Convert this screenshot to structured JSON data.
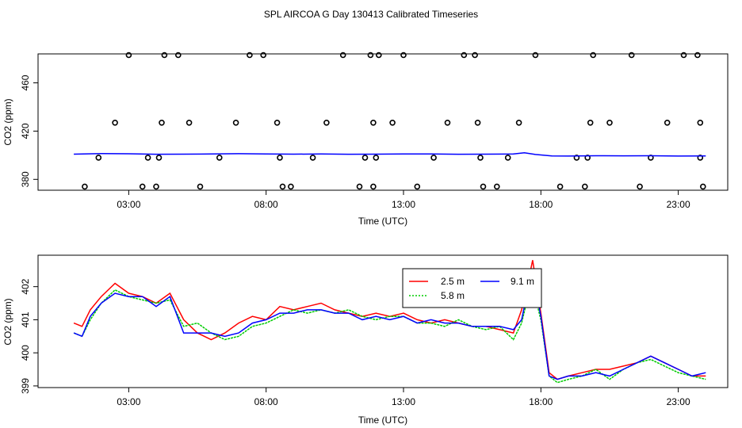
{
  "title": "SPL AIRCOA G  Day 130413  Calibrated Timeseries",
  "chart_data": [
    {
      "type": "line+scatter",
      "panel": "top",
      "xlabel": "Time (UTC)",
      "ylabel": "CO2 (ppm)",
      "xlim": [
        -0.3,
        24.8
      ],
      "ylim": [
        371.0,
        484.0
      ],
      "xticks": [
        3,
        8,
        13,
        18,
        23
      ],
      "xtick_labels": [
        "03:00",
        "08:00",
        "13:00",
        "18:00",
        "23:00"
      ],
      "yticks": [
        380,
        420,
        460
      ],
      "ytick_labels": [
        "380",
        "420",
        "460"
      ],
      "line_series": {
        "name": "CO2",
        "color": "#0000ff",
        "x": [
          1.0,
          2.0,
          3.0,
          4.0,
          5.0,
          6.0,
          7.0,
          8.0,
          9.0,
          10.0,
          11.0,
          12.0,
          13.0,
          14.0,
          15.0,
          16.0,
          17.0,
          17.4,
          17.8,
          18.4,
          19.0,
          20.0,
          21.0,
          22.0,
          23.0,
          24.0
        ],
        "y": [
          400.9,
          401.4,
          401.2,
          400.8,
          400.9,
          401.0,
          401.3,
          401.1,
          400.9,
          401.0,
          400.8,
          400.9,
          401.0,
          401.0,
          400.8,
          400.9,
          401.0,
          402.1,
          400.6,
          399.4,
          399.3,
          399.6,
          399.5,
          399.6,
          399.3,
          399.4
        ]
      },
      "markers": {
        "name": "calibration points",
        "color": "#000000",
        "x": [
          1.4,
          1.9,
          2.5,
          3.0,
          3.5,
          3.7,
          4.0,
          4.1,
          4.2,
          4.3,
          4.8,
          5.2,
          5.6,
          6.3,
          6.9,
          7.4,
          7.9,
          8.4,
          8.5,
          8.6,
          8.9,
          9.7,
          10.2,
          10.8,
          11.4,
          11.6,
          11.8,
          11.9,
          11.9,
          12.0,
          12.1,
          12.6,
          13.0,
          13.5,
          14.1,
          14.6,
          15.2,
          15.6,
          15.7,
          15.8,
          15.9,
          16.4,
          16.8,
          17.2,
          17.8,
          18.7,
          19.3,
          19.6,
          19.7,
          19.8,
          19.9,
          20.5,
          21.3,
          21.6,
          22.0,
          22.6,
          23.2,
          23.7,
          23.8,
          23.8,
          23.9
        ],
        "y": [
          374,
          398,
          427,
          483,
          374,
          398,
          374,
          398,
          427,
          483,
          483,
          427,
          374,
          398,
          427,
          483,
          483,
          427,
          398,
          374,
          374,
          398,
          427,
          483,
          374,
          398,
          483,
          427,
          374,
          398,
          483,
          427,
          483,
          374,
          398,
          427,
          483,
          483,
          427,
          398,
          374,
          374,
          398,
          427,
          483,
          374,
          398,
          374,
          398,
          427,
          483,
          427,
          483,
          374,
          398,
          427,
          483,
          483,
          427,
          398,
          374
        ]
      }
    },
    {
      "type": "line",
      "panel": "bottom",
      "xlabel": "Time (UTC)",
      "ylabel": "CO2 (ppm)",
      "xlim": [
        -0.3,
        24.8
      ],
      "ylim": [
        398.95,
        402.95
      ],
      "xticks": [
        3,
        8,
        13,
        18,
        23
      ],
      "xtick_labels": [
        "03:00",
        "08:00",
        "13:00",
        "18:00",
        "23:00"
      ],
      "yticks": [
        399,
        400,
        401,
        402
      ],
      "ytick_labels": [
        "399",
        "400",
        "401",
        "402"
      ],
      "legend": {
        "placement": "top-center"
      },
      "series": [
        {
          "name": "2.5 m",
          "color": "#ff0000",
          "x": [
            1.0,
            1.3,
            1.6,
            2.0,
            2.5,
            3.0,
            3.5,
            4.0,
            4.5,
            5.0,
            5.5,
            6.0,
            6.5,
            7.0,
            7.5,
            8.0,
            8.5,
            9.0,
            9.5,
            10.0,
            10.5,
            11.0,
            11.5,
            12.0,
            12.5,
            13.0,
            13.5,
            14.0,
            14.5,
            15.0,
            15.5,
            16.0,
            16.5,
            17.0,
            17.3,
            17.5,
            17.7,
            18.0,
            18.3,
            18.6,
            19.0,
            19.5,
            20.0,
            20.5,
            21.0,
            21.5,
            22.0,
            22.5,
            23.0,
            23.5,
            24.0
          ],
          "y": [
            400.9,
            400.8,
            401.3,
            401.7,
            402.1,
            401.8,
            401.7,
            401.5,
            401.8,
            401.0,
            400.6,
            400.4,
            400.6,
            400.9,
            401.1,
            401.0,
            401.4,
            401.3,
            401.4,
            401.5,
            401.3,
            401.2,
            401.1,
            401.2,
            401.1,
            401.2,
            401.0,
            400.9,
            401.0,
            400.9,
            400.8,
            400.8,
            400.7,
            400.6,
            401.3,
            402.0,
            402.8,
            401.2,
            399.4,
            399.2,
            399.3,
            399.4,
            399.5,
            399.5,
            399.6,
            399.7,
            399.9,
            399.7,
            399.5,
            399.3,
            399.3
          ]
        },
        {
          "name": "5.8 m",
          "color": "#00cc00",
          "x": [
            1.0,
            1.3,
            1.6,
            2.0,
            2.5,
            3.0,
            3.5,
            4.0,
            4.5,
            5.0,
            5.5,
            6.0,
            6.5,
            7.0,
            7.5,
            8.0,
            8.5,
            9.0,
            9.5,
            10.0,
            10.5,
            11.0,
            11.5,
            12.0,
            12.5,
            13.0,
            13.5,
            14.0,
            14.5,
            15.0,
            15.5,
            16.0,
            16.5,
            17.0,
            17.3,
            17.5,
            17.7,
            18.0,
            18.3,
            18.6,
            19.0,
            19.5,
            20.0,
            20.5,
            21.0,
            21.5,
            22.0,
            22.5,
            23.0,
            23.5,
            24.0
          ],
          "y": [
            400.6,
            400.5,
            401.0,
            401.5,
            401.9,
            401.7,
            401.6,
            401.5,
            401.6,
            400.8,
            400.9,
            400.6,
            400.4,
            400.5,
            400.8,
            400.9,
            401.1,
            401.3,
            401.2,
            401.3,
            401.2,
            401.3,
            401.1,
            401.0,
            401.1,
            401.1,
            400.9,
            400.9,
            400.8,
            401.0,
            400.8,
            400.7,
            400.8,
            400.4,
            400.9,
            401.6,
            402.0,
            401.0,
            399.3,
            399.1,
            399.2,
            399.3,
            399.5,
            399.2,
            399.5,
            399.7,
            399.8,
            399.6,
            399.4,
            399.3,
            399.2
          ]
        },
        {
          "name": "9.1 m",
          "color": "#0000ff",
          "x": [
            1.0,
            1.3,
            1.6,
            2.0,
            2.5,
            3.0,
            3.5,
            4.0,
            4.5,
            5.0,
            5.5,
            6.0,
            6.5,
            7.0,
            7.5,
            8.0,
            8.5,
            9.0,
            9.5,
            10.0,
            10.5,
            11.0,
            11.5,
            12.0,
            12.5,
            13.0,
            13.5,
            14.0,
            14.5,
            15.0,
            15.5,
            16.0,
            16.5,
            17.0,
            17.3,
            17.5,
            17.7,
            18.0,
            18.3,
            18.6,
            19.0,
            19.5,
            20.0,
            20.5,
            21.0,
            21.5,
            22.0,
            22.5,
            23.0,
            23.5,
            24.0
          ],
          "y": [
            400.6,
            400.5,
            401.1,
            401.5,
            401.8,
            401.7,
            401.7,
            401.4,
            401.7,
            400.6,
            400.6,
            400.6,
            400.5,
            400.6,
            400.9,
            401.0,
            401.2,
            401.2,
            401.3,
            401.3,
            401.2,
            401.2,
            401.0,
            401.1,
            401.0,
            401.1,
            400.9,
            401.0,
            400.9,
            400.9,
            400.8,
            400.8,
            400.8,
            400.7,
            401.0,
            401.8,
            402.4,
            401.1,
            399.3,
            399.2,
            399.3,
            399.3,
            399.4,
            399.3,
            399.5,
            399.7,
            399.9,
            399.7,
            399.5,
            399.3,
            399.4
          ]
        }
      ]
    }
  ]
}
